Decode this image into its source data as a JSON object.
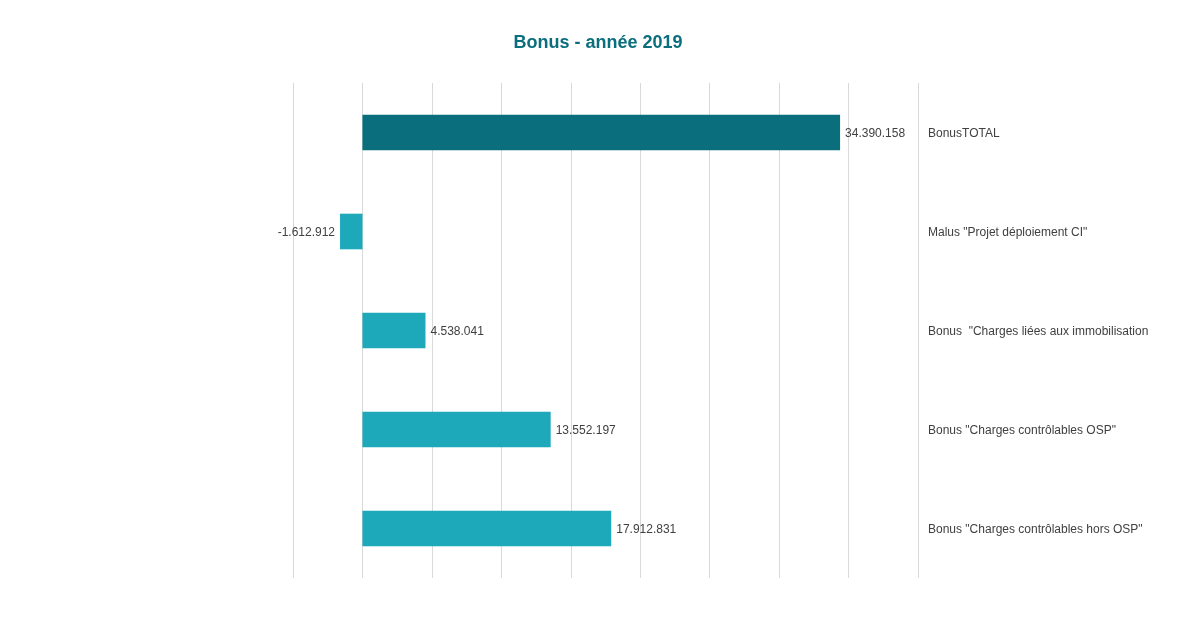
{
  "chart_data": {
    "type": "bar",
    "orientation": "horizontal",
    "title": "Bonus - année 2019",
    "categories": [
      "BonusTOTAL",
      "Malus \"Projet déploiement CI\"",
      "Bonus  \"Charges liées aux immobilisation",
      "Bonus \"Charges contrôlables OSP\"",
      "Bonus \"Charges contrôlables hors OSP\""
    ],
    "values": [
      34390158,
      -1612912,
      4538041,
      13552197,
      17912831
    ],
    "colors": [
      "#0a6e7d",
      "#1ea9bb",
      "#1ea9bb",
      "#1ea9bb",
      "#1ea9bb"
    ],
    "value_labels": [
      "34.390.158",
      "-1.612.912",
      "4.538.041",
      "13.552.197",
      "17.912.831"
    ],
    "xlim": [
      -5000000,
      40000000
    ],
    "xticks": [
      {
        "value": -5000000,
        "label": null
      },
      {
        "value": 0,
        "label": null
      },
      {
        "value": 5000000,
        "label": null
      },
      {
        "value": 10000000,
        "label": null
      },
      {
        "value": 15000000,
        "label": null
      },
      {
        "value": 20000000,
        "label": null
      },
      {
        "value": 25000000,
        "label": null
      },
      {
        "value": 30000000,
        "label": null
      },
      {
        "value": 35000000,
        "label": null
      },
      {
        "value": 40000000,
        "label": null
      }
    ],
    "grid": "x",
    "tick_labels": "y"
  }
}
